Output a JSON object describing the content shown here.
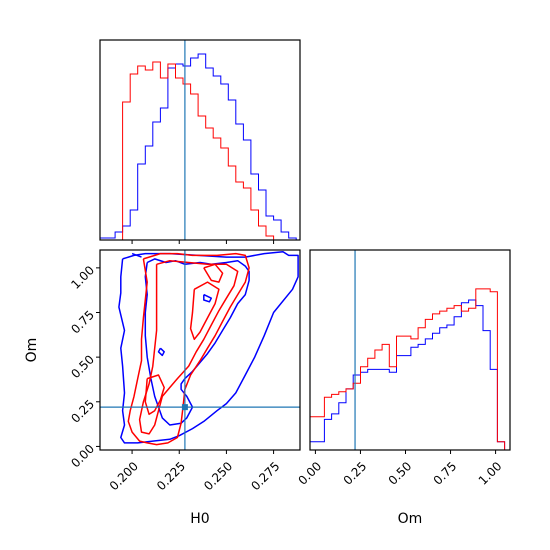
{
  "chart_data": {
    "type": "corner",
    "parameters": [
      "H0",
      "Om"
    ],
    "truth": {
      "H0": 0.228,
      "Om": 0.22
    },
    "colors": {
      "blue": "#0000ff",
      "red": "#ff0000",
      "truth": "#1f77b4"
    },
    "H0_hist": {
      "bins": [
        0.183,
        0.187,
        0.191,
        0.195,
        0.199,
        0.203,
        0.207,
        0.211,
        0.215,
        0.219,
        0.223,
        0.227,
        0.231,
        0.235,
        0.239,
        0.243,
        0.247,
        0.251,
        0.255,
        0.259,
        0.263,
        0.267,
        0.271,
        0.275,
        0.279,
        0.283,
        0.287
      ],
      "series": [
        {
          "color": "blue",
          "values": [
            0.01,
            0.01,
            0.04,
            0.07,
            0.15,
            0.38,
            0.47,
            0.59,
            0.66,
            0.86,
            0.88,
            0.87,
            0.91,
            0.93,
            0.86,
            0.82,
            0.78,
            0.7,
            0.58,
            0.5,
            0.33,
            0.25,
            0.12,
            0.1,
            0.04,
            0.01
          ]
        },
        {
          "color": "red",
          "values": [
            0.0,
            0.0,
            0.0,
            0.69,
            0.83,
            0.87,
            0.85,
            0.89,
            0.81,
            0.88,
            0.81,
            0.78,
            0.73,
            0.62,
            0.56,
            0.51,
            0.46,
            0.37,
            0.29,
            0.26,
            0.15,
            0.07,
            0.02,
            0.0,
            0.0,
            0.0
          ]
        }
      ],
      "ylim": [
        0,
        1
      ]
    },
    "Om_hist": {
      "bins": [
        -0.03,
        0.01,
        0.05,
        0.09,
        0.13,
        0.17,
        0.21,
        0.25,
        0.29,
        0.33,
        0.37,
        0.41,
        0.45,
        0.49,
        0.53,
        0.57,
        0.61,
        0.65,
        0.69,
        0.73,
        0.77,
        0.81,
        0.85,
        0.89,
        0.93,
        0.97,
        1.01,
        1.05
      ],
      "series": [
        {
          "color": "blue",
          "values": [
            0.03,
            0.03,
            0.11,
            0.13,
            0.17,
            0.22,
            0.27,
            0.28,
            0.29,
            0.29,
            0.29,
            0.28,
            0.34,
            0.34,
            0.37,
            0.38,
            0.4,
            0.42,
            0.44,
            0.45,
            0.48,
            0.53,
            0.54,
            0.52,
            0.43,
            0.29,
            0.03
          ]
        },
        {
          "color": "red",
          "values": [
            0.12,
            0.12,
            0.19,
            0.2,
            0.21,
            0.22,
            0.24,
            0.3,
            0.33,
            0.36,
            0.38,
            0.3,
            0.41,
            0.41,
            0.4,
            0.44,
            0.47,
            0.49,
            0.5,
            0.51,
            0.52,
            0.5,
            0.51,
            0.58,
            0.58,
            0.57,
            0.03
          ]
        }
      ],
      "ylim": [
        0,
        0.72
      ]
    },
    "contours": {
      "xlim": [
        0.183,
        0.289
      ],
      "ylim": [
        -0.02,
        1.1
      ],
      "series": [
        {
          "color": "blue",
          "paths": [
            [
              [
                0.195,
                1.05
              ],
              [
                0.201,
                1.07
              ],
              [
                0.207,
                1.08
              ],
              [
                0.22,
                1.08
              ],
              [
                0.235,
                1.07
              ],
              [
                0.25,
                1.06
              ],
              [
                0.26,
                1.06
              ],
              [
                0.27,
                1.08
              ],
              [
                0.28,
                1.09
              ],
              [
                0.283,
                1.07
              ],
              [
                0.288,
                1.07
              ],
              [
                0.288,
                0.95
              ],
              [
                0.285,
                0.88
              ],
              [
                0.275,
                0.75
              ],
              [
                0.27,
                0.62
              ],
              [
                0.265,
                0.5
              ],
              [
                0.26,
                0.4
              ],
              [
                0.255,
                0.3
              ],
              [
                0.25,
                0.24
              ],
              [
                0.245,
                0.2
              ],
              [
                0.238,
                0.14
              ],
              [
                0.232,
                0.1
              ],
              [
                0.225,
                0.06
              ],
              [
                0.22,
                0.04
              ],
              [
                0.211,
                0.03
              ],
              [
                0.203,
                0.02
              ],
              [
                0.196,
                0.02
              ],
              [
                0.194,
                0.05
              ],
              [
                0.196,
                0.12
              ],
              [
                0.195,
                0.2
              ],
              [
                0.196,
                0.3
              ],
              [
                0.195,
                0.45
              ],
              [
                0.194,
                0.55
              ],
              [
                0.196,
                0.65
              ],
              [
                0.193,
                0.78
              ],
              [
                0.194,
                0.86
              ],
              [
                0.194,
                0.95
              ],
              [
                0.195,
                1.05
              ]
            ],
            [
              [
                0.208,
                1.03
              ],
              [
                0.212,
                1.05
              ],
              [
                0.218,
                1.03
              ],
              [
                0.223,
                1.04
              ],
              [
                0.228,
                1.02
              ],
              [
                0.236,
                1.03
              ],
              [
                0.242,
                1.02
              ],
              [
                0.25,
                1.03
              ],
              [
                0.256,
                1.04
              ],
              [
                0.26,
                1.01
              ],
              [
                0.262,
                0.98
              ],
              [
                0.262,
                0.93
              ],
              [
                0.26,
                0.85
              ],
              [
                0.256,
                0.8
              ],
              [
                0.252,
                0.72
              ],
              [
                0.248,
                0.65
              ],
              [
                0.244,
                0.58
              ],
              [
                0.24,
                0.52
              ],
              [
                0.236,
                0.47
              ],
              [
                0.232,
                0.42
              ],
              [
                0.228,
                0.38
              ],
              [
                0.226,
                0.35
              ],
              [
                0.226,
                0.32
              ],
              [
                0.229,
                0.28
              ],
              [
                0.232,
                0.22
              ],
              [
                0.229,
                0.16
              ],
              [
                0.226,
                0.13
              ],
              [
                0.22,
                0.12
              ],
              [
                0.216,
                0.16
              ],
              [
                0.214,
                0.22
              ],
              [
                0.212,
                0.28
              ],
              [
                0.21,
                0.38
              ],
              [
                0.208,
                0.5
              ],
              [
                0.207,
                0.62
              ],
              [
                0.207,
                0.75
              ],
              [
                0.208,
                0.85
              ],
              [
                0.207,
                0.95
              ],
              [
                0.208,
                1.03
              ]
            ],
            [
              [
                0.2,
                1.08
              ],
              [
                0.205,
                1.06
              ]
            ],
            [
              [
                0.238,
                0.85
              ],
              [
                0.242,
                0.83
              ],
              [
                0.241,
                0.81
              ],
              [
                0.238,
                0.82
              ],
              [
                0.238,
                0.85
              ]
            ],
            [
              [
                0.215,
                0.55
              ],
              [
                0.217,
                0.53
              ],
              [
                0.216,
                0.51
              ],
              [
                0.214,
                0.53
              ],
              [
                0.215,
                0.55
              ]
            ]
          ]
        },
        {
          "color": "red",
          "paths": [
            [
              [
                0.206,
                1.05
              ],
              [
                0.215,
                1.08
              ],
              [
                0.224,
                1.08
              ],
              [
                0.232,
                1.07
              ],
              [
                0.245,
                1.07
              ],
              [
                0.255,
                1.08
              ],
              [
                0.26,
                1.07
              ],
              [
                0.262,
                1.0
              ],
              [
                0.26,
                0.92
              ],
              [
                0.256,
                0.85
              ],
              [
                0.252,
                0.78
              ],
              [
                0.248,
                0.7
              ],
              [
                0.244,
                0.62
              ],
              [
                0.24,
                0.55
              ],
              [
                0.236,
                0.48
              ],
              [
                0.231,
                0.4
              ],
              [
                0.228,
                0.32
              ],
              [
                0.227,
                0.22
              ],
              [
                0.226,
                0.13
              ],
              [
                0.224,
                0.05
              ],
              [
                0.219,
                0.02
              ],
              [
                0.213,
                0.01
              ],
              [
                0.208,
                0.02
              ],
              [
                0.204,
                0.03
              ],
              [
                0.2,
                0.08
              ],
              [
                0.198,
                0.14
              ],
              [
                0.199,
                0.2
              ],
              [
                0.201,
                0.28
              ],
              [
                0.203,
                0.38
              ],
              [
                0.205,
                0.48
              ],
              [
                0.205,
                0.6
              ],
              [
                0.206,
                0.72
              ],
              [
                0.207,
                0.82
              ],
              [
                0.208,
                0.92
              ],
              [
                0.206,
                1.05
              ]
            ],
            [
              [
                0.213,
                1.02
              ],
              [
                0.22,
                1.04
              ],
              [
                0.23,
                1.03
              ],
              [
                0.24,
                1.02
              ],
              [
                0.25,
                1.02
              ],
              [
                0.256,
                0.98
              ],
              [
                0.254,
                0.9
              ],
              [
                0.25,
                0.83
              ],
              [
                0.246,
                0.76
              ],
              [
                0.242,
                0.68
              ],
              [
                0.238,
                0.6
              ],
              [
                0.234,
                0.53
              ],
              [
                0.23,
                0.45
              ],
              [
                0.224,
                0.38
              ],
              [
                0.22,
                0.33
              ],
              [
                0.216,
                0.28
              ],
              [
                0.214,
                0.2
              ],
              [
                0.212,
                0.12
              ],
              [
                0.209,
                0.07
              ],
              [
                0.205,
                0.08
              ],
              [
                0.204,
                0.15
              ],
              [
                0.206,
                0.25
              ],
              [
                0.209,
                0.35
              ],
              [
                0.211,
                0.45
              ],
              [
                0.212,
                0.55
              ],
              [
                0.213,
                0.65
              ],
              [
                0.213,
                0.75
              ],
              [
                0.213,
                0.85
              ],
              [
                0.213,
                1.02
              ]
            ],
            [
              [
                0.233,
                0.88
              ],
              [
                0.24,
                0.92
              ],
              [
                0.246,
                0.88
              ],
              [
                0.244,
                0.8
              ],
              [
                0.24,
                0.72
              ],
              [
                0.236,
                0.64
              ],
              [
                0.233,
                0.6
              ],
              [
                0.231,
                0.66
              ],
              [
                0.232,
                0.75
              ],
              [
                0.233,
                0.88
              ]
            ],
            [
              [
                0.208,
                0.38
              ],
              [
                0.214,
                0.4
              ],
              [
                0.217,
                0.33
              ],
              [
                0.215,
                0.26
              ],
              [
                0.212,
                0.2
              ],
              [
                0.209,
                0.18
              ],
              [
                0.207,
                0.25
              ],
              [
                0.208,
                0.38
              ]
            ],
            [
              [
                0.238,
                1.0
              ],
              [
                0.244,
                1.02
              ],
              [
                0.248,
                0.97
              ],
              [
                0.246,
                0.92
              ],
              [
                0.242,
                0.93
              ],
              [
                0.238,
                1.0
              ]
            ]
          ]
        }
      ]
    },
    "axes": {
      "h0_ticks": [
        "0.200",
        "0.225",
        "0.250",
        "0.275"
      ],
      "om_ticks": [
        "0.00",
        "0.25",
        "0.50",
        "0.75",
        "1.00"
      ],
      "xlabel_left": "H0",
      "xlabel_right": "Om",
      "ylabel_left": "Om"
    }
  }
}
